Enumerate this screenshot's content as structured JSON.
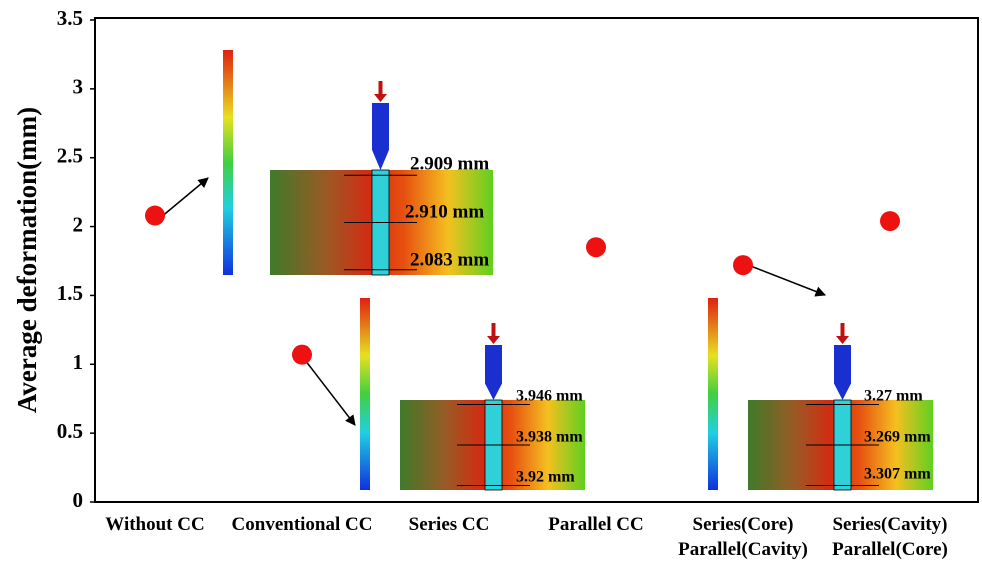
{
  "chart_data": {
    "type": "scatter",
    "ylabel": "Average deformation(mm)",
    "categories": [
      "Without CC",
      "Conventional CC",
      "Series CC",
      "Parallel CC",
      "Series(Core)\nParallel(Cavity)",
      "Series(Cavity)\nParallel(Core)"
    ],
    "values": [
      2.08,
      1.07,
      null,
      1.85,
      1.72,
      2.04
    ],
    "color": "#ee1111",
    "ylim": [
      0,
      3.5
    ],
    "yticks": [
      0,
      0.5,
      1,
      1.5,
      2,
      2.5,
      3,
      3.5
    ],
    "annotations": [
      "2.909 mm",
      "2.910 mm",
      "2.083 mm",
      "3.946 mm",
      "3.938 mm",
      "3.92 mm",
      "3.27 mm",
      "3.269 mm",
      "3.307 mm"
    ]
  }
}
